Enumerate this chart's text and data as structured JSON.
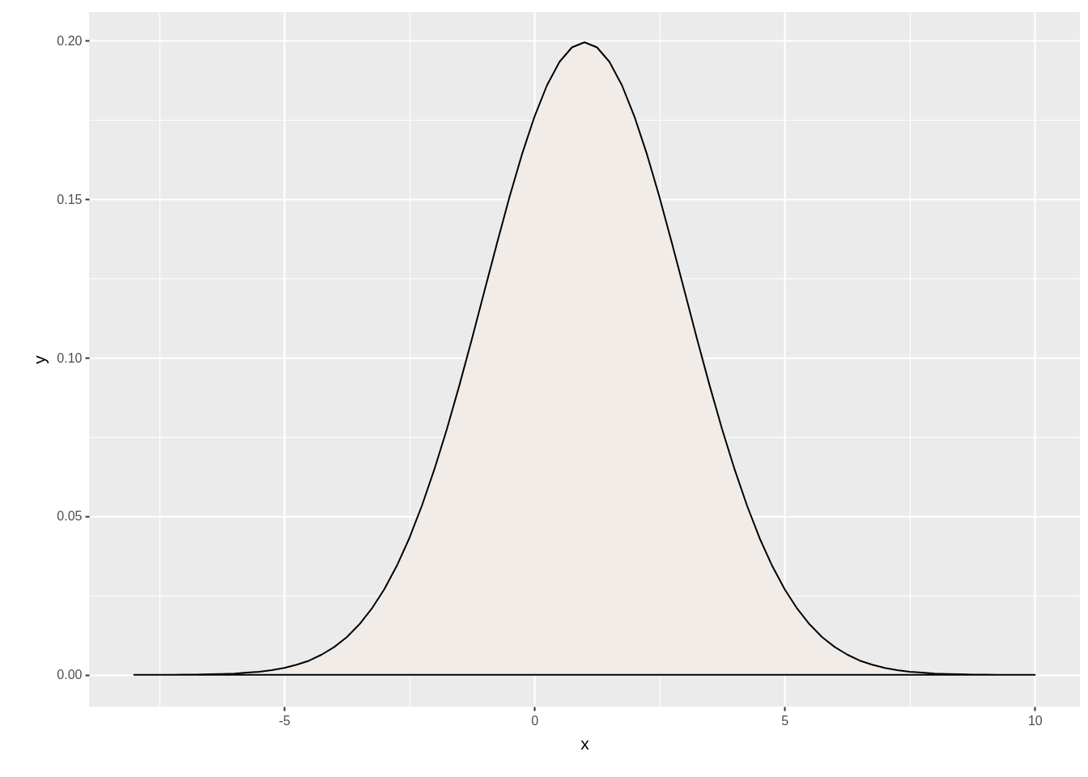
{
  "chart_data": {
    "type": "area",
    "xlabel": "x",
    "ylabel": "y",
    "x": [
      -8,
      -7.75,
      -7.5,
      -7.25,
      -7,
      -6.75,
      -6.5,
      -6.25,
      -6,
      -5.75,
      -5.5,
      -5.25,
      -5,
      -4.75,
      -4.5,
      -4.25,
      -4,
      -3.75,
      -3.5,
      -3.25,
      -3,
      -2.75,
      -2.5,
      -2.25,
      -2,
      -1.75,
      -1.5,
      -1.25,
      -1,
      -0.75,
      -0.5,
      -0.25,
      0,
      0.25,
      0.5,
      0.75,
      1,
      1.25,
      1.5,
      1.75,
      2,
      2.25,
      2.5,
      2.75,
      3,
      3.25,
      3.5,
      3.75,
      4,
      4.25,
      4.5,
      4.75,
      5,
      5.25,
      5.5,
      5.75,
      6,
      6.25,
      6.5,
      6.75,
      7,
      7.25,
      7.5,
      7.75,
      8,
      8.25,
      8.5,
      8.75,
      9,
      9.25,
      9.5,
      9.75,
      10
    ],
    "values": [
      0.0,
      0.0,
      0.0,
      0.0,
      0.0001,
      0.0001,
      0.0002,
      0.0003,
      0.0004,
      0.0007,
      0.001,
      0.0015,
      0.0022,
      0.0032,
      0.0045,
      0.0064,
      0.0088,
      0.0119,
      0.0159,
      0.0209,
      0.027,
      0.0344,
      0.0431,
      0.0533,
      0.0648,
      0.0775,
      0.0913,
      0.1059,
      0.121,
      0.136,
      0.1506,
      0.1641,
      0.176,
      0.1859,
      0.1933,
      0.1979,
      0.1995,
      0.1979,
      0.1933,
      0.1859,
      0.176,
      0.1641,
      0.1506,
      0.136,
      0.121,
      0.1059,
      0.0913,
      0.0775,
      0.0648,
      0.0533,
      0.0431,
      0.0344,
      0.027,
      0.0209,
      0.0159,
      0.0119,
      0.0088,
      0.0064,
      0.0045,
      0.0032,
      0.0022,
      0.0015,
      0.001,
      0.0007,
      0.0004,
      0.0003,
      0.0002,
      0.0001,
      0.0001,
      0.0,
      0.0,
      0.0,
      0.0
    ],
    "color": "#f1ece8",
    "xlim": [
      -8.9,
      10.9
    ],
    "ylim": [
      -0.01,
      0.209
    ],
    "xticks": [
      {
        "value": -7.5,
        "label": null
      },
      -5,
      {
        "value": -2.5,
        "label": null
      },
      0,
      {
        "value": 2.5,
        "label": null
      },
      5,
      {
        "value": 7.5,
        "label": null
      },
      10
    ],
    "yticks": [
      {
        "value": 0,
        "label": "0.00"
      },
      {
        "value": 0.025,
        "label": null
      },
      0.05,
      {
        "value": 0.075,
        "label": null
      },
      {
        "value": 0.1,
        "label": "0.10"
      },
      {
        "value": 0.125,
        "label": null
      },
      0.15,
      {
        "value": 0.175,
        "label": null
      },
      {
        "value": 0.2,
        "label": "0.20"
      }
    ],
    "grid": true
  }
}
